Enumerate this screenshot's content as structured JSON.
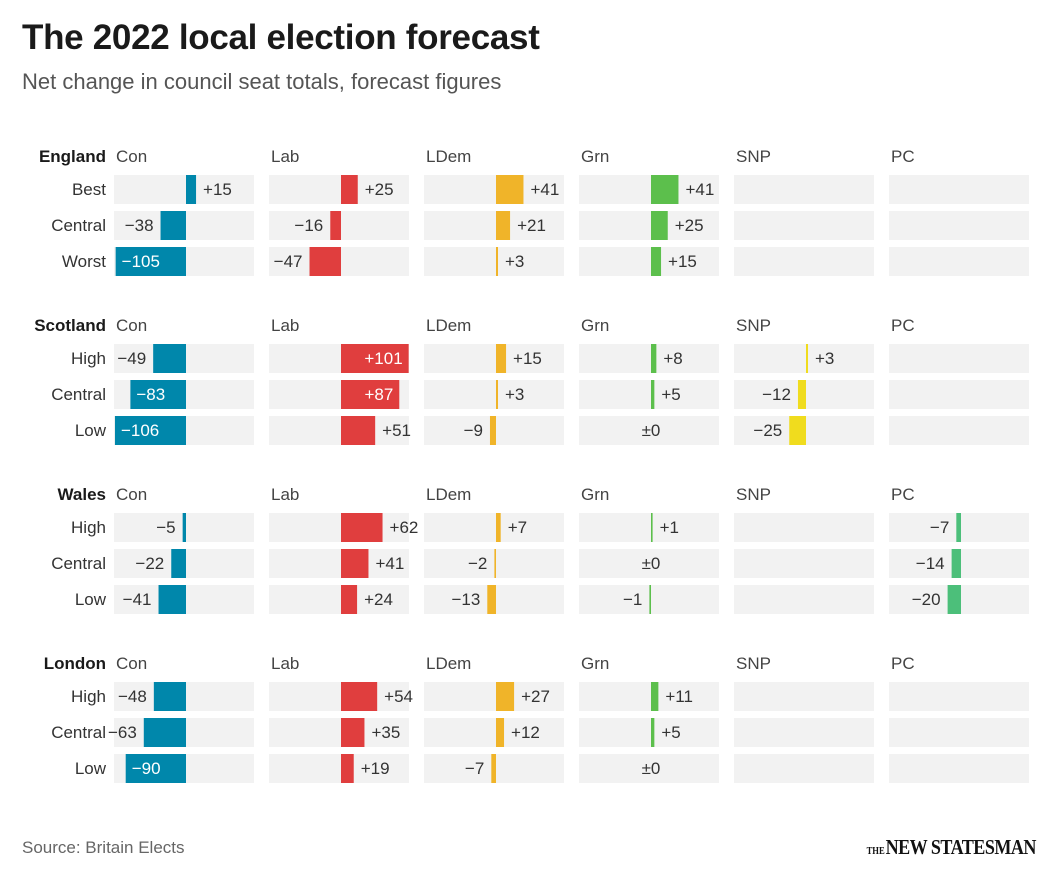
{
  "title": "The 2022 local election forecast",
  "subtitle": "Net change in council seat totals, forecast figures",
  "source": "Source: Britain Elects",
  "logo": {
    "prefix": "THE",
    "name": "NEW STATESMAN"
  },
  "colors": {
    "Con": "#0087ab",
    "Lab": "#e03e3e",
    "LDem": "#f0b429",
    "Grn": "#5cbf4c",
    "SNP": "#f0dc1e",
    "PC": "#4cbf7a",
    "track": "#f2f2f2"
  },
  "chart_data": {
    "type": "bar",
    "parties": [
      "Con",
      "Lab",
      "LDem",
      "Grn",
      "SNP",
      "PC"
    ],
    "regions": [
      {
        "name": "England",
        "scenarios": [
          "Best",
          "Central",
          "Worst"
        ],
        "values": {
          "Con": [
            15,
            -38,
            -105
          ],
          "Lab": [
            25,
            -16,
            -47
          ],
          "LDem": [
            41,
            21,
            3
          ],
          "Grn": [
            41,
            25,
            15
          ],
          "SNP": [
            null,
            null,
            null
          ],
          "PC": [
            null,
            null,
            null
          ]
        }
      },
      {
        "name": "Scotland",
        "scenarios": [
          "High",
          "Central",
          "Low"
        ],
        "values": {
          "Con": [
            -49,
            -83,
            -106
          ],
          "Lab": [
            101,
            87,
            51
          ],
          "LDem": [
            15,
            3,
            -9
          ],
          "Grn": [
            8,
            5,
            0
          ],
          "SNP": [
            3,
            -12,
            -25
          ],
          "PC": [
            null,
            null,
            null
          ]
        }
      },
      {
        "name": "Wales",
        "scenarios": [
          "High",
          "Central",
          "Low"
        ],
        "values": {
          "Con": [
            -5,
            -22,
            -41
          ],
          "Lab": [
            62,
            41,
            24
          ],
          "LDem": [
            7,
            -2,
            -13
          ],
          "Grn": [
            1,
            0,
            -1
          ],
          "SNP": [
            null,
            null,
            null
          ],
          "PC": [
            -7,
            -14,
            -20
          ]
        }
      },
      {
        "name": "London",
        "scenarios": [
          "High",
          "Central",
          "Low"
        ],
        "values": {
          "Con": [
            -48,
            -63,
            -90
          ],
          "Lab": [
            54,
            35,
            19
          ],
          "LDem": [
            27,
            12,
            -7
          ],
          "Grn": [
            11,
            5,
            0
          ],
          "SNP": [
            null,
            null,
            null
          ],
          "PC": [
            null,
            null,
            null
          ]
        }
      }
    ]
  }
}
